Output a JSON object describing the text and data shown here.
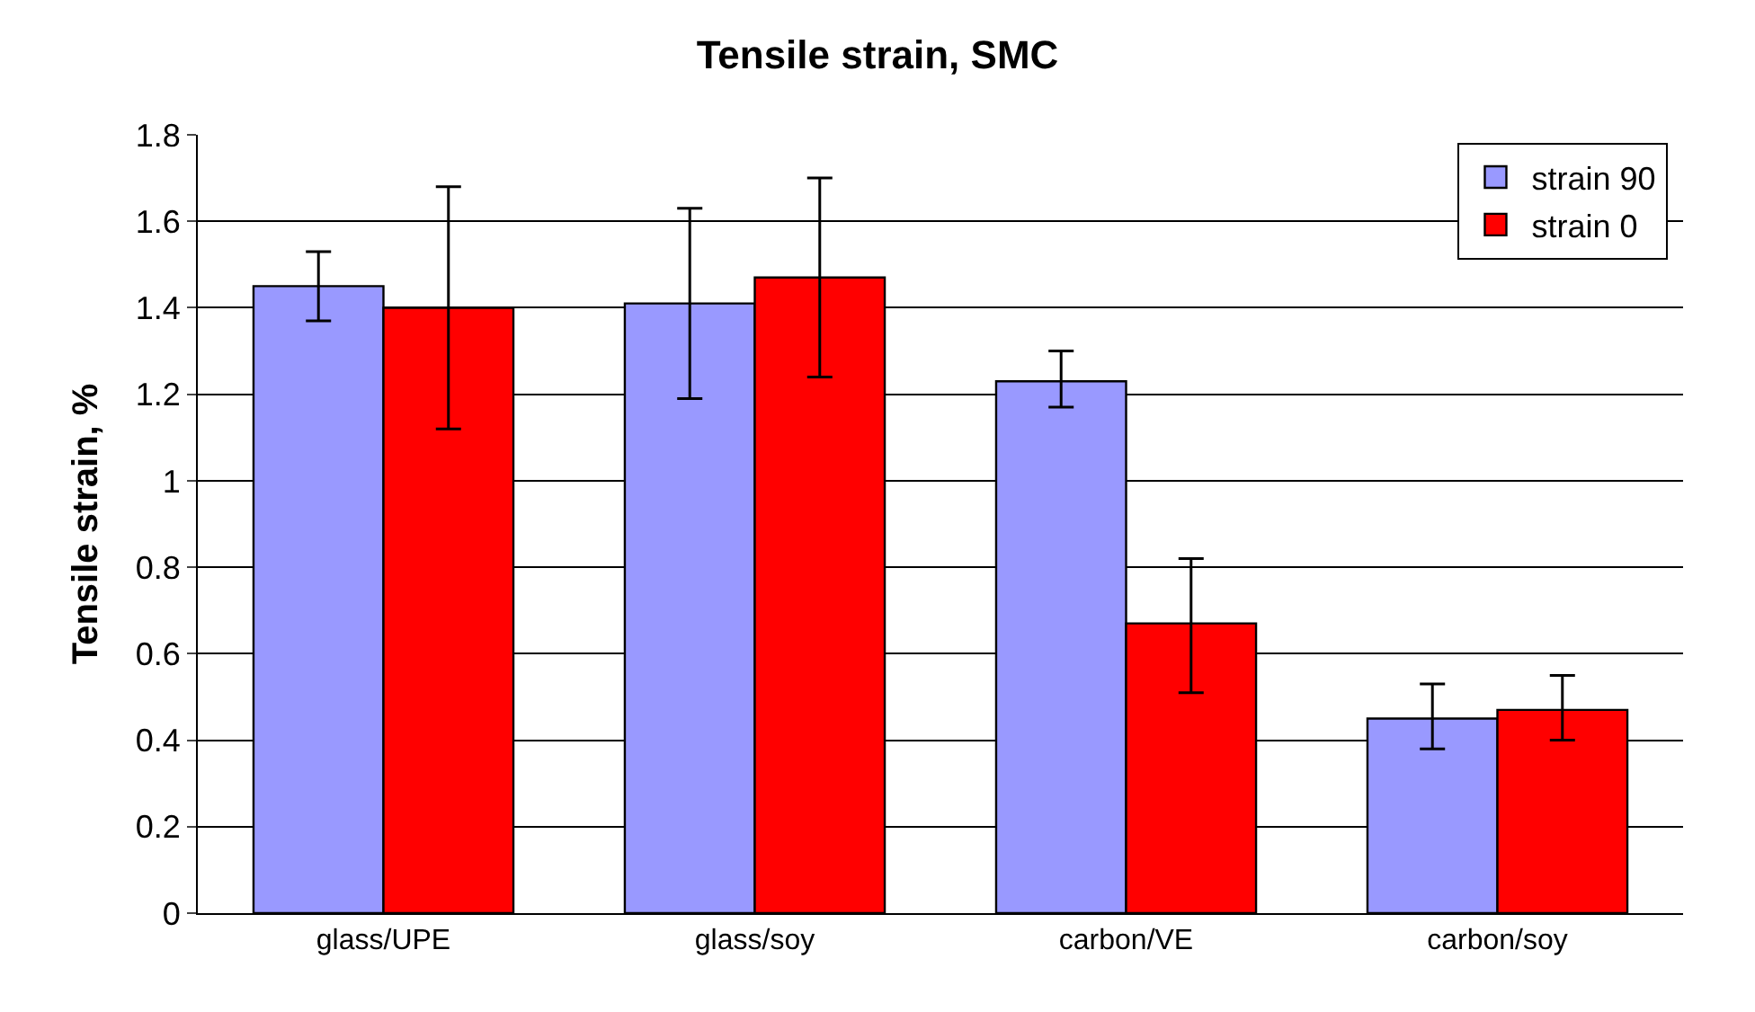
{
  "chart_data": {
    "type": "bar",
    "title": "Tensile strain, SMC",
    "ylabel": "Tensile strain, %",
    "categories": [
      "glass/UPE",
      "glass/soy",
      "carbon/VE",
      "carbon/soy"
    ],
    "series": [
      {
        "name": "strain 90",
        "color": "#9999ff",
        "values": [
          1.45,
          1.41,
          1.23,
          0.45
        ],
        "errors": [
          [
            1.37,
            1.53
          ],
          [
            1.19,
            1.63
          ],
          [
            1.17,
            1.3
          ],
          [
            0.38,
            0.53
          ]
        ]
      },
      {
        "name": "strain 0",
        "color": "#ff0000",
        "values": [
          1.4,
          1.47,
          0.67,
          0.47
        ],
        "errors": [
          [
            1.12,
            1.68
          ],
          [
            1.24,
            1.7
          ],
          [
            0.51,
            0.82
          ],
          [
            0.4,
            0.55
          ]
        ]
      }
    ],
    "ylim": [
      0,
      1.8
    ],
    "yticks": [
      0,
      0.2,
      0.4,
      0.6,
      0.8,
      1,
      1.2,
      1.4,
      1.6,
      1.8
    ],
    "grid": "y",
    "legend": "top right"
  }
}
